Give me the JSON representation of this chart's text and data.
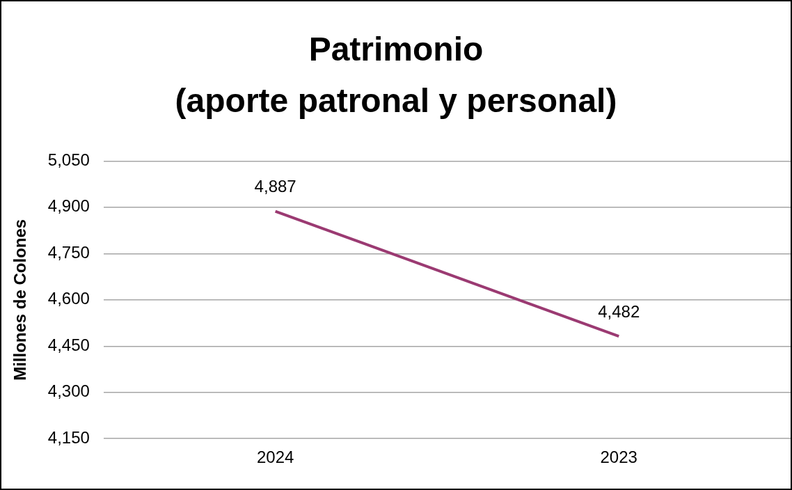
{
  "chart_data": {
    "type": "line",
    "title": "Patrimonio\n(aporte patronal y personal)",
    "ylabel": "Millones de Colones",
    "categories": [
      "2024",
      "2023"
    ],
    "series": [
      {
        "color": "#9b3a72",
        "values": [
          4887,
          4482
        ],
        "value_labels": [
          "4,887",
          "4,482"
        ]
      }
    ],
    "ylim": [
      4150,
      5050
    ],
    "yticks": [
      {
        "value": 4150,
        "label": "4,150"
      },
      {
        "value": 4300,
        "label": "4,300"
      },
      {
        "value": 4450,
        "label": "4,450"
      },
      {
        "value": 4600,
        "label": "4,600"
      },
      {
        "value": 4750,
        "label": "4,750"
      },
      {
        "value": 4900,
        "label": "4,900"
      },
      {
        "value": 5050,
        "label": "5,050"
      }
    ],
    "grid": "y",
    "legend": false,
    "marker": "none"
  }
}
